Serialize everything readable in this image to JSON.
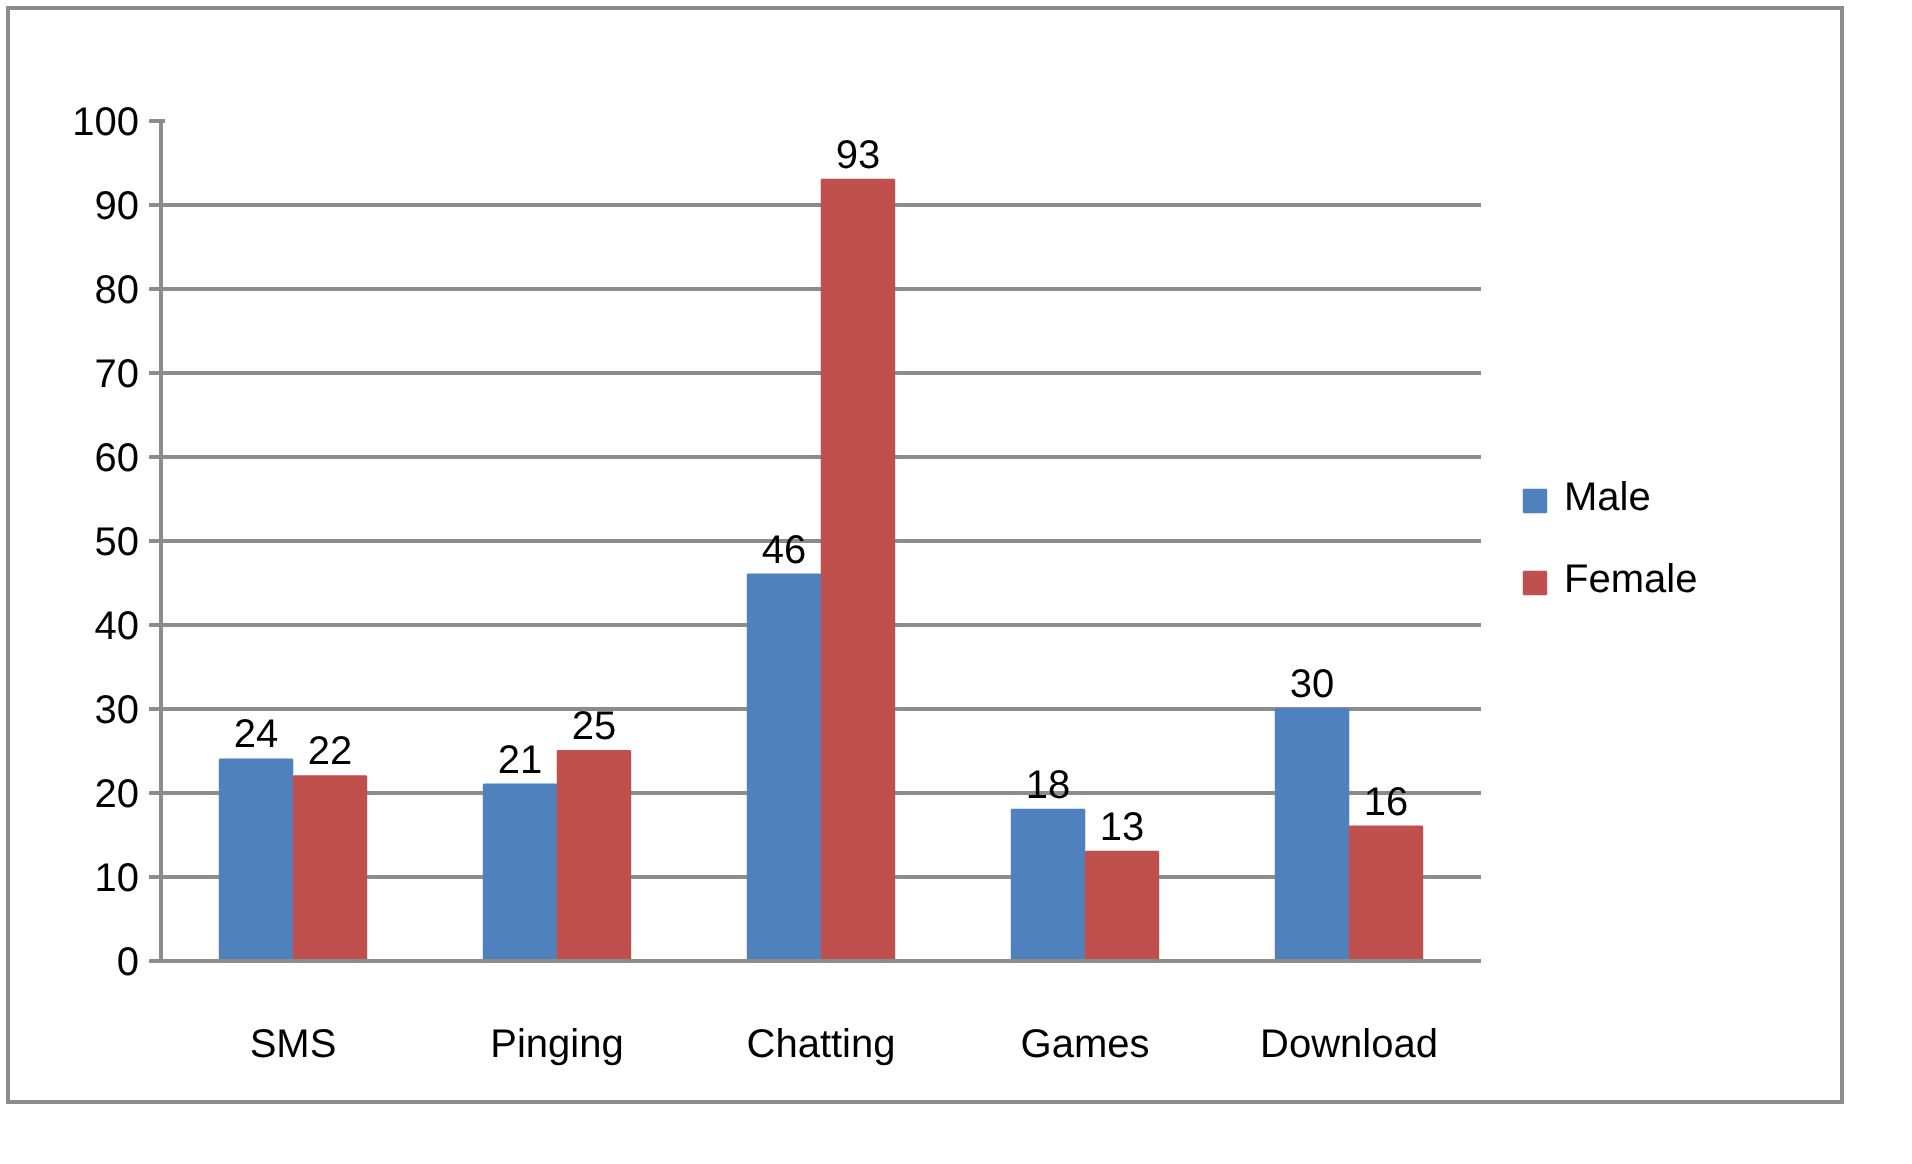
{
  "chart_data": {
    "type": "bar",
    "categories": [
      "SMS",
      "Pinging",
      "Chatting",
      "Games",
      "Download"
    ],
    "series": [
      {
        "name": "Male",
        "color": "#4f81bd",
        "values": [
          24,
          21,
          46,
          18,
          30
        ]
      },
      {
        "name": "Female",
        "color": "#c0504d",
        "values": [
          22,
          25,
          93,
          13,
          16
        ]
      }
    ],
    "ylim": [
      0,
      100
    ],
    "yticks": [
      0,
      10,
      20,
      30,
      40,
      50,
      60,
      70,
      80,
      90,
      100
    ],
    "grid": "y",
    "legend": "right",
    "data_labels": true
  }
}
